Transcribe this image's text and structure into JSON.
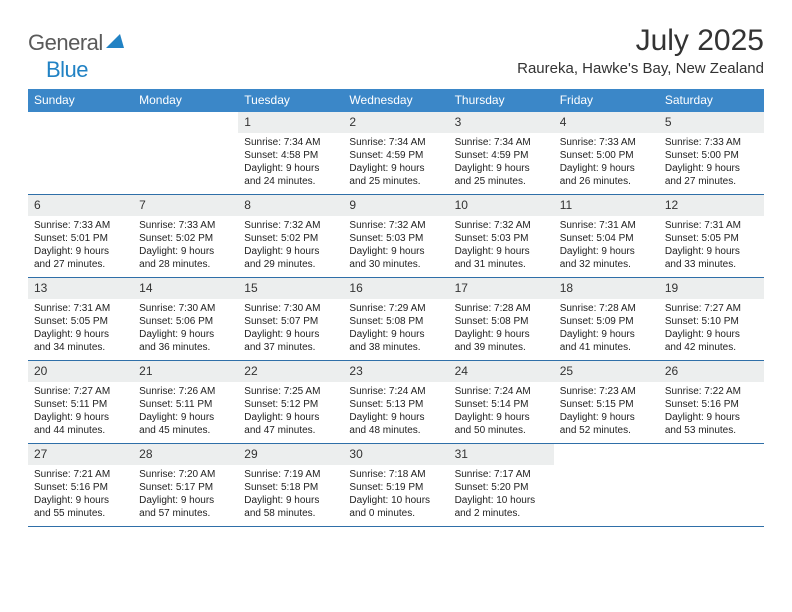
{
  "brand": {
    "part1": "General",
    "part2": "Blue"
  },
  "title": "July 2025",
  "location": "Raureka, Hawke's Bay, New Zealand",
  "theme": {
    "header_bg": "#3b87c8",
    "header_text": "#ffffff",
    "daynum_bg": "#eceeee",
    "border": "#2f6fa8",
    "logo_gray": "#5a5a5a",
    "logo_blue": "#2182c4"
  },
  "dow": [
    "Sunday",
    "Monday",
    "Tuesday",
    "Wednesday",
    "Thursday",
    "Friday",
    "Saturday"
  ],
  "weeks": [
    [
      {
        "empty": true
      },
      {
        "empty": true
      },
      {
        "num": "1",
        "sunrise": "7:34 AM",
        "sunset": "4:58 PM",
        "daylight": "9 hours and 24 minutes."
      },
      {
        "num": "2",
        "sunrise": "7:34 AM",
        "sunset": "4:59 PM",
        "daylight": "9 hours and 25 minutes."
      },
      {
        "num": "3",
        "sunrise": "7:34 AM",
        "sunset": "4:59 PM",
        "daylight": "9 hours and 25 minutes."
      },
      {
        "num": "4",
        "sunrise": "7:33 AM",
        "sunset": "5:00 PM",
        "daylight": "9 hours and 26 minutes."
      },
      {
        "num": "5",
        "sunrise": "7:33 AM",
        "sunset": "5:00 PM",
        "daylight": "9 hours and 27 minutes."
      }
    ],
    [
      {
        "num": "6",
        "sunrise": "7:33 AM",
        "sunset": "5:01 PM",
        "daylight": "9 hours and 27 minutes."
      },
      {
        "num": "7",
        "sunrise": "7:33 AM",
        "sunset": "5:02 PM",
        "daylight": "9 hours and 28 minutes."
      },
      {
        "num": "8",
        "sunrise": "7:32 AM",
        "sunset": "5:02 PM",
        "daylight": "9 hours and 29 minutes."
      },
      {
        "num": "9",
        "sunrise": "7:32 AM",
        "sunset": "5:03 PM",
        "daylight": "9 hours and 30 minutes."
      },
      {
        "num": "10",
        "sunrise": "7:32 AM",
        "sunset": "5:03 PM",
        "daylight": "9 hours and 31 minutes."
      },
      {
        "num": "11",
        "sunrise": "7:31 AM",
        "sunset": "5:04 PM",
        "daylight": "9 hours and 32 minutes."
      },
      {
        "num": "12",
        "sunrise": "7:31 AM",
        "sunset": "5:05 PM",
        "daylight": "9 hours and 33 minutes."
      }
    ],
    [
      {
        "num": "13",
        "sunrise": "7:31 AM",
        "sunset": "5:05 PM",
        "daylight": "9 hours and 34 minutes."
      },
      {
        "num": "14",
        "sunrise": "7:30 AM",
        "sunset": "5:06 PM",
        "daylight": "9 hours and 36 minutes."
      },
      {
        "num": "15",
        "sunrise": "7:30 AM",
        "sunset": "5:07 PM",
        "daylight": "9 hours and 37 minutes."
      },
      {
        "num": "16",
        "sunrise": "7:29 AM",
        "sunset": "5:08 PM",
        "daylight": "9 hours and 38 minutes."
      },
      {
        "num": "17",
        "sunrise": "7:28 AM",
        "sunset": "5:08 PM",
        "daylight": "9 hours and 39 minutes."
      },
      {
        "num": "18",
        "sunrise": "7:28 AM",
        "sunset": "5:09 PM",
        "daylight": "9 hours and 41 minutes."
      },
      {
        "num": "19",
        "sunrise": "7:27 AM",
        "sunset": "5:10 PM",
        "daylight": "9 hours and 42 minutes."
      }
    ],
    [
      {
        "num": "20",
        "sunrise": "7:27 AM",
        "sunset": "5:11 PM",
        "daylight": "9 hours and 44 minutes."
      },
      {
        "num": "21",
        "sunrise": "7:26 AM",
        "sunset": "5:11 PM",
        "daylight": "9 hours and 45 minutes."
      },
      {
        "num": "22",
        "sunrise": "7:25 AM",
        "sunset": "5:12 PM",
        "daylight": "9 hours and 47 minutes."
      },
      {
        "num": "23",
        "sunrise": "7:24 AM",
        "sunset": "5:13 PM",
        "daylight": "9 hours and 48 minutes."
      },
      {
        "num": "24",
        "sunrise": "7:24 AM",
        "sunset": "5:14 PM",
        "daylight": "9 hours and 50 minutes."
      },
      {
        "num": "25",
        "sunrise": "7:23 AM",
        "sunset": "5:15 PM",
        "daylight": "9 hours and 52 minutes."
      },
      {
        "num": "26",
        "sunrise": "7:22 AM",
        "sunset": "5:16 PM",
        "daylight": "9 hours and 53 minutes."
      }
    ],
    [
      {
        "num": "27",
        "sunrise": "7:21 AM",
        "sunset": "5:16 PM",
        "daylight": "9 hours and 55 minutes."
      },
      {
        "num": "28",
        "sunrise": "7:20 AM",
        "sunset": "5:17 PM",
        "daylight": "9 hours and 57 minutes."
      },
      {
        "num": "29",
        "sunrise": "7:19 AM",
        "sunset": "5:18 PM",
        "daylight": "9 hours and 58 minutes."
      },
      {
        "num": "30",
        "sunrise": "7:18 AM",
        "sunset": "5:19 PM",
        "daylight": "10 hours and 0 minutes."
      },
      {
        "num": "31",
        "sunrise": "7:17 AM",
        "sunset": "5:20 PM",
        "daylight": "10 hours and 2 minutes."
      },
      {
        "empty": true
      },
      {
        "empty": true
      }
    ]
  ],
  "labels": {
    "sunrise": "Sunrise:",
    "sunset": "Sunset:",
    "daylight": "Daylight:"
  }
}
